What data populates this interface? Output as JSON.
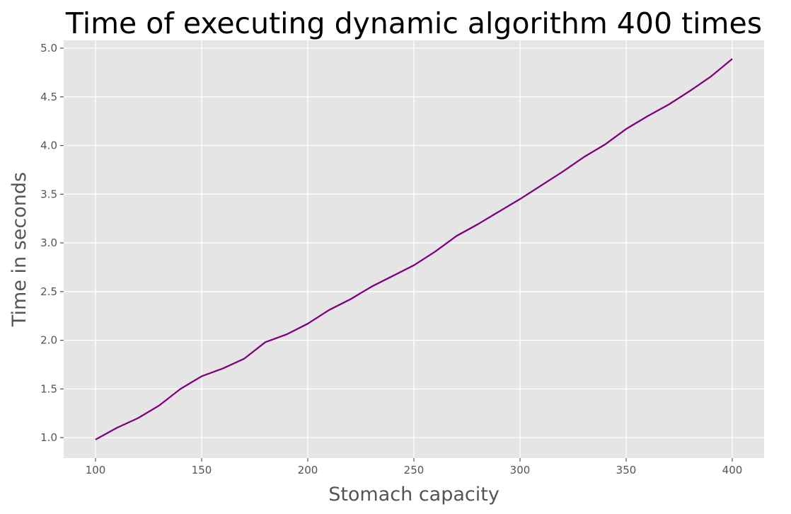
{
  "chart_data": {
    "type": "line",
    "title": "Time of executing dynamic algorithm  400 times",
    "xlabel": "Stomach capacity",
    "ylabel": "Time in seconds",
    "xlim": [
      85,
      415
    ],
    "ylim": [
      0.79,
      5.08
    ],
    "xticks": [
      100,
      150,
      200,
      250,
      300,
      350,
      400
    ],
    "yticks": [
      1.0,
      1.5,
      2.0,
      2.5,
      3.0,
      3.5,
      4.0,
      4.5,
      5.0
    ],
    "grid": true,
    "background": "#e5e5e5",
    "grid_color": "#ffffff",
    "series": [
      {
        "color": "#800080",
        "x": [
          100,
          110,
          120,
          130,
          140,
          150,
          160,
          170,
          180,
          190,
          200,
          210,
          220,
          230,
          240,
          250,
          260,
          270,
          280,
          290,
          300,
          310,
          320,
          330,
          340,
          350,
          360,
          370,
          380,
          390,
          400
        ],
        "y": [
          0.98,
          1.1,
          1.2,
          1.33,
          1.5,
          1.63,
          1.71,
          1.81,
          1.98,
          2.06,
          2.17,
          2.31,
          2.42,
          2.55,
          2.66,
          2.77,
          2.91,
          3.07,
          3.19,
          3.32,
          3.45,
          3.59,
          3.73,
          3.88,
          4.01,
          4.17,
          4.3,
          4.42,
          4.56,
          4.71,
          4.89
        ]
      }
    ]
  }
}
